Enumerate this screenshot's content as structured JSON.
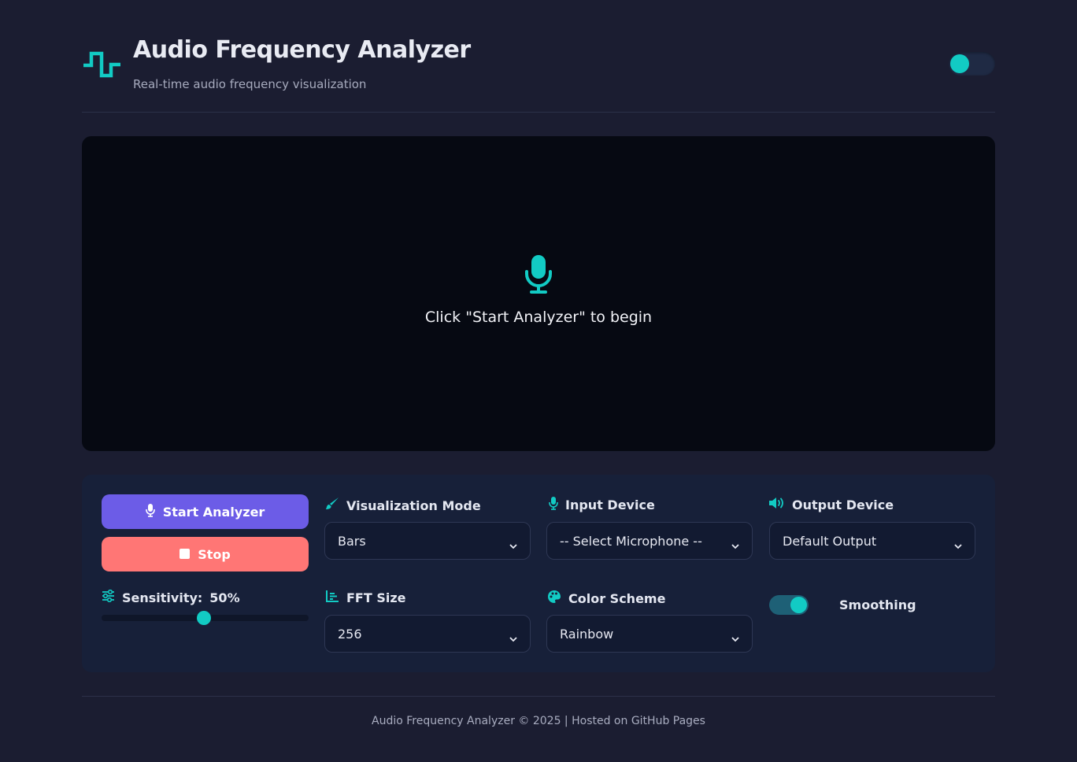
{
  "colors": {
    "accent": "#12cbc4",
    "start_button": "#6c5ce7",
    "stop_button": "#ff7675",
    "background": "#1b1d31",
    "visualizer_background": "#060912",
    "panel_background": "#172039"
  },
  "header": {
    "logo_icon": "waveform-icon",
    "title": "Audio Frequency Analyzer",
    "subtitle": "Real-time audio frequency visualization",
    "theme_toggle_on": false
  },
  "visualizer": {
    "icon": "microphone-icon",
    "placeholder": "Click \"Start Analyzer\" to begin"
  },
  "controls": {
    "start_button": {
      "label": "Start Analyzer",
      "icon": "microphone-icon"
    },
    "stop_button": {
      "label": "Stop",
      "icon": "stop-icon"
    },
    "sensitivity": {
      "label": "Sensitivity:",
      "value": "50%",
      "icon": "sliders-icon",
      "level": 0.5
    },
    "visualization_mode": {
      "label": "Visualization Mode",
      "icon": "paint-brush-icon",
      "selected": "Bars"
    },
    "fft_size": {
      "label": "FFT Size",
      "icon": "chart-icon",
      "selected": "256"
    },
    "input_device": {
      "label": "Input Device",
      "icon": "microphone-icon",
      "selected": "-- Select Microphone --"
    },
    "color_scheme": {
      "label": "Color Scheme",
      "icon": "palette-icon",
      "selected": "Rainbow"
    },
    "output_device": {
      "label": "Output Device",
      "icon": "speaker-icon",
      "selected": "Default Output"
    },
    "smoothing": {
      "label": "Smoothing",
      "enabled": true
    }
  },
  "footer": {
    "text": "Audio Frequency Analyzer © 2025 | Hosted on GitHub Pages"
  }
}
